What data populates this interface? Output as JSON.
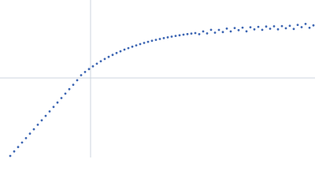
{
  "chart_data": {
    "type": "scatter",
    "color": "#3d66b3",
    "grid": true,
    "xlim": [
      0,
      400
    ],
    "ylim": [
      0,
      200
    ],
    "xticks": [
      115
    ],
    "yticks": [
      101
    ],
    "x": [
      13,
      18,
      23,
      28,
      33,
      38,
      43,
      48,
      53,
      58,
      63,
      68,
      73,
      78,
      83,
      88,
      93,
      98,
      103,
      108,
      113,
      118,
      123,
      128,
      133,
      138,
      143,
      148,
      153,
      158,
      163,
      168,
      173,
      178,
      183,
      188,
      193,
      198,
      203,
      208,
      213,
      218,
      223,
      228,
      233,
      238,
      243,
      248,
      253,
      258,
      263,
      268,
      273,
      278,
      283,
      288,
      293,
      298,
      303,
      308,
      313,
      318,
      323,
      328,
      333,
      338,
      343,
      348,
      353,
      358,
      363,
      368,
      373,
      378,
      383,
      388,
      393,
      398
    ],
    "y": [
      2,
      7.7,
      13.3,
      19,
      24.6,
      30.3,
      35.9,
      41.6,
      47.2,
      52.9,
      58.5,
      64.2,
      69.8,
      75.5,
      81.1,
      86.8,
      92.4,
      98.1,
      104.5,
      108.6,
      112.3,
      115.8,
      119.1,
      122.2,
      125.1,
      127.8,
      130.3,
      132.7,
      134.9,
      137,
      138.9,
      140.7,
      142.4,
      144,
      145.5,
      146.9,
      148.2,
      149.4,
      150.5,
      151.6,
      152.6,
      153.5,
      154.4,
      155.2,
      156,
      156.7,
      157.4,
      158,
      156.6,
      160.1,
      157.6,
      162.1,
      158.5,
      162,
      159.3,
      163.7,
      160.1,
      164.4,
      161.7,
      164.9,
      160.2,
      165.4,
      162.7,
      165.9,
      162.1,
      166.3,
      163.5,
      166.6,
      162.8,
      166.9,
      164.1,
      167.2,
      163.2,
      168.4,
      165.5,
      169.6,
      164.7,
      167.8
    ]
  }
}
